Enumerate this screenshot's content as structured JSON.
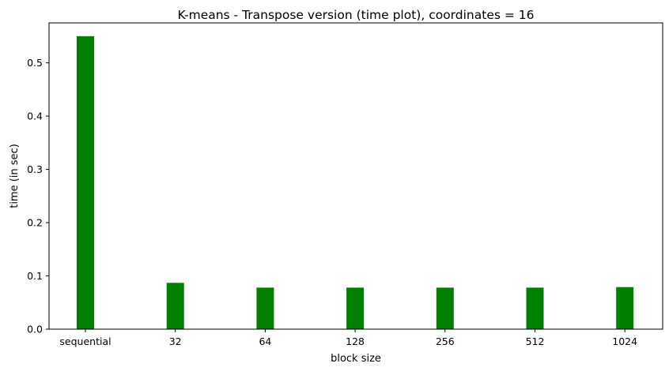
{
  "chart_data": {
    "type": "bar",
    "title": "K-means - Transpose version (time plot), coordinates = 16",
    "xlabel": "block size",
    "ylabel": "time (in sec)",
    "categories": [
      "sequential",
      "32",
      "64",
      "128",
      "256",
      "512",
      "1024"
    ],
    "values": [
      0.55,
      0.087,
      0.078,
      0.078,
      0.078,
      0.078,
      0.079
    ],
    "ylim": [
      0,
      0.575
    ],
    "yticks": [
      0.0,
      0.1,
      0.2,
      0.3,
      0.4,
      0.5
    ],
    "ytick_labels": [
      "0.0",
      "0.1",
      "0.2",
      "0.3",
      "0.4",
      "0.5"
    ],
    "bar_color": "#008000",
    "grid": false,
    "legend": "none"
  }
}
